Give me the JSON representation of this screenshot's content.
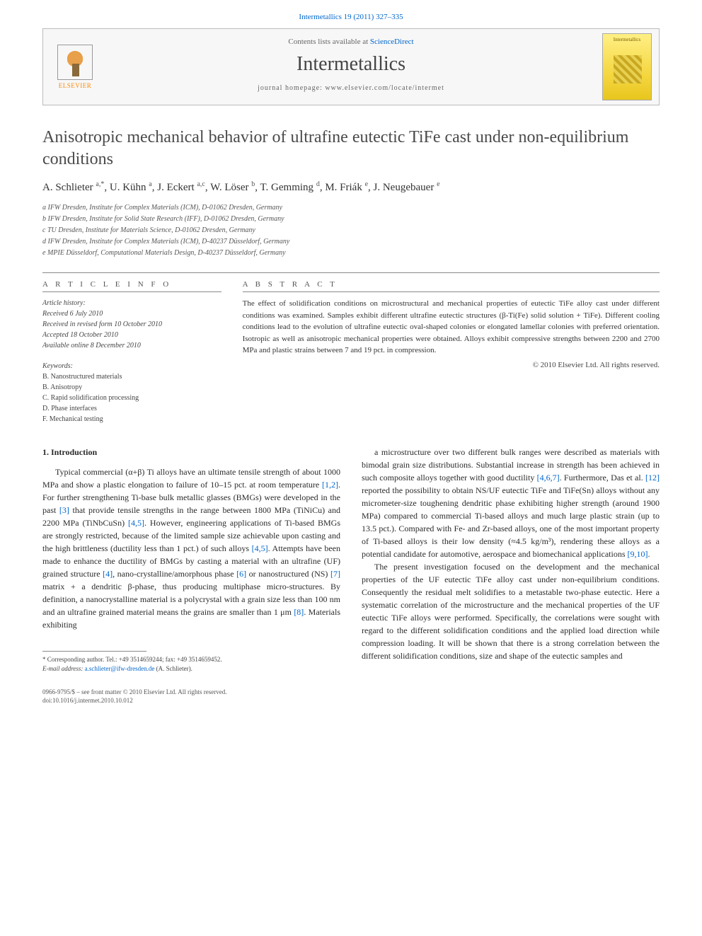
{
  "citation": "Intermetallics 19 (2011) 327–335",
  "header": {
    "contents_prefix": "Contents lists available at ",
    "contents_link": "ScienceDirect",
    "journal": "Intermetallics",
    "homepage_prefix": "journal homepage: ",
    "homepage_url": "www.elsevier.com/locate/intermet",
    "publisher_label": "ELSEVIER",
    "cover_label": "Intermetallics"
  },
  "title": "Anisotropic mechanical behavior of ultrafine eutectic TiFe cast under non-equilibrium conditions",
  "authors_html": "A. Schlieter <sup>a,*</sup>, U. Kühn <sup>a</sup>, J. Eckert <sup>a,c</sup>, W. Löser <sup>b</sup>, T. Gemming <sup>d</sup>, M. Friák <sup>e</sup>, J. Neugebauer <sup>e</sup>",
  "affiliations": [
    "a IFW Dresden, Institute for Complex Materials (ICM), D-01062 Dresden, Germany",
    "b IFW Dresden, Institute for Solid State Research (IFF), D-01062 Dresden, Germany",
    "c TU Dresden, Institute for Materials Science, D-01062 Dresden, Germany",
    "d IFW Dresden, Institute for Complex Materials (ICM), D-40237 Düsseldorf, Germany",
    "e MPIE Düsseldorf, Computational Materials Design, D-40237 Düsseldorf, Germany"
  ],
  "info_header": "A R T I C L E   I N F O",
  "abstract_header": "A B S T R A C T",
  "history": {
    "label": "Article history:",
    "received": "Received 6 July 2010",
    "revised": "Received in revised form 10 October 2010",
    "accepted": "Accepted 18 October 2010",
    "online": "Available online 8 December 2010"
  },
  "keywords": {
    "label": "Keywords:",
    "items": [
      "B. Nanostructured materials",
      "B. Anisotropy",
      "C. Rapid solidification processing",
      "D. Phase interfaces",
      "F. Mechanical testing"
    ]
  },
  "abstract": "The effect of solidification conditions on microstructural and mechanical properties of eutectic TiFe alloy cast under different conditions was examined. Samples exhibit different ultrafine eutectic structures (β-Ti(Fe) solid solution + TiFe). Different cooling conditions lead to the evolution of ultrafine eutectic oval-shaped colonies or elongated lamellar colonies with preferred orientation. Isotropic as well as anisotropic mechanical properties were obtained. Alloys exhibit compressive strengths between 2200 and 2700 MPa and plastic strains between 7 and 19 pct. in compression.",
  "copyright": "© 2010 Elsevier Ltd. All rights reserved.",
  "intro_heading": "1.  Introduction",
  "col1_p1": "Typical commercial (α+β) Ti alloys have an ultimate tensile strength of about 1000 MPa and show a plastic elongation to failure of 10–15 pct. at room temperature [1,2]. For further strengthening Ti-base bulk metallic glasses (BMGs) were developed in the past [3] that provide tensile strengths in the range between 1800 MPa (TiNiCu) and 2200 MPa (TiNbCuSn) [4,5]. However, engineering applications of Ti-based BMGs are strongly restricted, because of the limited sample size achievable upon casting and the high brittleness (ductility less than 1 pct.) of such alloys [4,5]. Attempts have been made to enhance the ductility of BMGs by casting a material with an ultrafine (UF) grained structure [4], nano-crystalline/amorphous phase [6] or nanostructured (NS) [7] matrix + a dendritic β-phase, thus producing multiphase micro-structures. By definition, a nanocrystalline material is a polycrystal with a grain size less than 100 nm and an ultrafine grained material means the grains are smaller than 1 μm [8]. Materials exhibiting",
  "col2_p1": "a microstructure over two different bulk ranges were described as materials with bimodal grain size distributions. Substantial increase in strength has been achieved in such composite alloys together with good ductility [4,6,7]. Furthermore, Das et al. [12] reported the possibility to obtain NS/UF eutectic TiFe and TiFe(Sn) alloys without any micrometer-size toughening dendritic phase exhibiting higher strength (around 1900 MPa) compared to commercial Ti-based alloys and much large plastic strain (up to 13.5 pct.). Compared with Fe- and Zr-based alloys, one of the most important property of Ti-based alloys is their low density (≈4.5 kg/m³), rendering these alloys as a potential candidate for automotive, aerospace and biomechanical applications [9,10].",
  "col2_p2": "The present investigation focused on the development and the mechanical properties of the UF eutectic TiFe alloy cast under non-equilibrium conditions. Consequently the residual melt solidifies to a metastable two-phase eutectic. Here a systematic correlation of the microstructure and the mechanical properties of the UF eutectic TiFe alloys were performed. Specifically, the correlations were sought with regard to the different solidification conditions and the applied load direction while compression loading. It will be shown that there is a strong correlation between the different solidification conditions, size and shape of the eutectic samples and",
  "footnote": {
    "corr": "* Corresponding author. Tel.: +49 3514659244; fax: +49 3514659452.",
    "email_label": "E-mail address: ",
    "email": "a.schlieter@ifw-dresden.de",
    "email_name": " (A. Schlieter)."
  },
  "footer": {
    "line1": "0966-9795/$ – see front matter © 2010 Elsevier Ltd. All rights reserved.",
    "line2": "doi:10.1016/j.intermet.2010.10.012"
  },
  "colors": {
    "link": "#0066cc",
    "text": "#2a2a2a",
    "muted": "#666666",
    "border": "#888888"
  }
}
